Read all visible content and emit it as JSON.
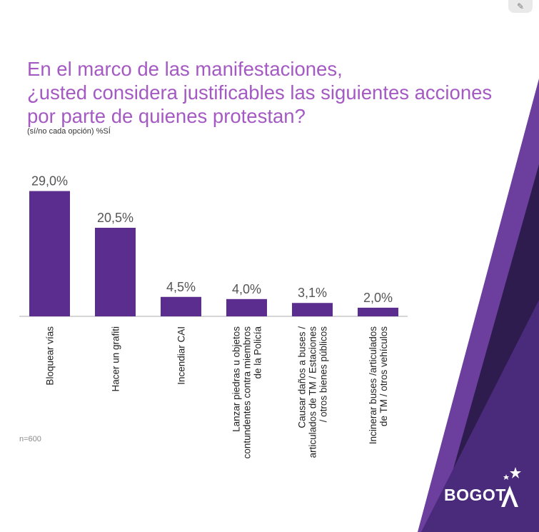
{
  "title": {
    "line1": "En el marco de las manifestaciones,",
    "line2": "¿usted considera justificables las siguientes acciones",
    "line3": "por parte de quienes protestan?"
  },
  "subtitle": "(sí/no cada opción) %SÍ",
  "footnote": "n=600",
  "logo": {
    "text": "BOGOT"
  },
  "icons": {
    "corner": "tools-icon",
    "logo_mark": "star-a-icon"
  },
  "colors": {
    "bar": "#5b2d8e",
    "title": "#a45ac2",
    "dark_purple": "#2e1c4e",
    "mid_purple": "#4a2a7b",
    "light_purple": "#6c3f9e"
  },
  "chart_data": {
    "type": "bar",
    "categories": [
      "Bloquear vías",
      "Hacer un grafiti",
      "Incendiar CAI",
      "Lanzar piedras u objetos contundentes contra miembros de la Policía",
      "Causar daños a buses / articulados de TM / Estaciones / otros bienes públicos",
      "Incinerar buses /articulados de TM / otros vehículos"
    ],
    "category_lines": [
      [
        "Bloquear vías"
      ],
      [
        "Hacer un grafiti"
      ],
      [
        "Incendiar CAI"
      ],
      [
        "Lanzar piedras u objetos",
        "contundentes contra miembros",
        "de la Policía"
      ],
      [
        "Causar daños a buses /",
        "articulados de TM / Estaciones",
        "/ otros bienes públicos"
      ],
      [
        "Incinerar buses /articulados",
        "de TM / otros vehículos"
      ]
    ],
    "values": [
      29.0,
      20.5,
      4.5,
      4.0,
      3.1,
      2.0
    ],
    "data_labels": [
      "29,0%",
      "20,5%",
      "4,5%",
      "4,0%",
      "3,1%",
      "2,0%"
    ],
    "ylim": [
      0,
      30
    ],
    "grid": false,
    "legend": "none"
  }
}
